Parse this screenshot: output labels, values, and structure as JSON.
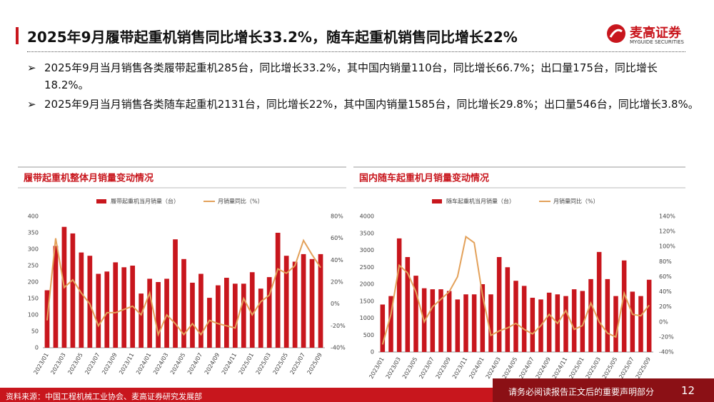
{
  "header": {
    "title": "2025年9月履带起重机销售同比增长33.2%，随车起重机销售同比增长22%",
    "logo": "麦高证券",
    "logo_sub": "MYGUIDE SECURITIES"
  },
  "bullets": [
    "2025年9月当月销售各类履带起重机285台，同比增长33.2%，其中国内销量110台，同比增长66.7%；出口量175台，同比增长18.2%。",
    "2025年9月当月销售各类随车起重机2131台，同比增长22%，其中国内销量1585台，同比增长29.8%；出口量546台，同比增长3.8%。"
  ],
  "footer": {
    "source": "资料来源：中国工程机械工业协会、麦高证券研究发展部",
    "notice": "请务必阅读报告正文后的重要声明部分",
    "page": "12"
  },
  "chart_data": [
    {
      "type": "bar",
      "title": "履带起重机整体月销量变动情况",
      "categories": [
        "2023/01",
        null,
        "2023/03",
        null,
        "2023/05",
        null,
        "2023/07",
        null,
        "2023/09",
        null,
        "2023/11",
        null,
        "2024/01",
        null,
        "2024/03",
        null,
        "2024/05",
        null,
        "2024/07",
        null,
        "2024/09",
        null,
        "2024/11",
        null,
        "2025/01",
        null,
        "2025/03",
        null,
        "2025/05",
        null,
        "2025/07",
        null,
        "2025/09"
      ],
      "series": [
        {
          "name": "履带起重机当月销量（台）",
          "type": "bar",
          "color": "#c8161d",
          "values": [
            175,
            310,
            368,
            348,
            290,
            280,
            225,
            232,
            260,
            245,
            250,
            165,
            210,
            200,
            210,
            330,
            270,
            198,
            225,
            152,
            190,
            213,
            195,
            195,
            230,
            180,
            215,
            350,
            280,
            262,
            285,
            270,
            285
          ]
        },
        {
          "name": "月销量同比（%）",
          "type": "line",
          "axis": "y2",
          "color": "#e3a15a",
          "values": [
            -15,
            60,
            15,
            22,
            10,
            0,
            -20,
            -8,
            -8,
            -5,
            -2,
            -10,
            10,
            -28,
            -10,
            -18,
            -28,
            -18,
            -28,
            -15,
            -18,
            -20,
            -22,
            5,
            -10,
            2,
            8,
            32,
            28,
            35,
            58,
            45,
            33.2
          ]
        }
      ],
      "ylim": [
        0,
        400
      ],
      "yticks": [
        0,
        50,
        100,
        150,
        200,
        250,
        300,
        350,
        400
      ],
      "y2lim": [
        -40,
        80
      ],
      "y2ticks": [
        {
          "value": -40,
          "label": "-40%"
        },
        {
          "value": -20,
          "label": "-20%"
        },
        {
          "value": 0,
          "label": "0%"
        },
        {
          "value": 20,
          "label": "20%"
        },
        {
          "value": 40,
          "label": "40%"
        },
        {
          "value": 60,
          "label": "60%"
        },
        {
          "value": 80,
          "label": "80%"
        }
      ]
    },
    {
      "type": "bar",
      "title": "国内随车起重机月销量变动情况",
      "categories": [
        "2023/01",
        null,
        "2023/03",
        null,
        "2023/05",
        null,
        "2023/07",
        null,
        "2023/09",
        null,
        "2023/11",
        null,
        "2024/01",
        null,
        "2024/03",
        null,
        "2024/05",
        null,
        "2024/07",
        null,
        "2024/09",
        null,
        "2024/11",
        null,
        "2025/01",
        null,
        "2025/03",
        null,
        "2025/05",
        null,
        "2025/07",
        null,
        "2025/09"
      ],
      "series": [
        {
          "name": "随车起重机当月销量（台）",
          "type": "bar",
          "color": "#c8161d",
          "values": [
            1400,
            1650,
            3350,
            2800,
            2250,
            1880,
            1850,
            1850,
            1800,
            1550,
            1700,
            1700,
            2000,
            1700,
            2800,
            2500,
            2100,
            1950,
            1600,
            1550,
            1750,
            1700,
            1650,
            1850,
            1800,
            2150,
            2950,
            2150,
            1650,
            2700,
            1780,
            1650,
            2131
          ]
        },
        {
          "name": "月销量同比（%）",
          "type": "line",
          "axis": "y2",
          "color": "#e3a15a",
          "values": [
            -30,
            10,
            75,
            65,
            40,
            0,
            20,
            30,
            40,
            60,
            113,
            105,
            35,
            -18,
            -12,
            -8,
            -2,
            -10,
            -16,
            -5,
            10,
            -2,
            15,
            -10,
            -5,
            25,
            0,
            -15,
            -20,
            38,
            10,
            8,
            22
          ]
        }
      ],
      "ylim": [
        0,
        4000
      ],
      "yticks": [
        0,
        500,
        1000,
        1500,
        2000,
        2500,
        3000,
        3500,
        4000
      ],
      "y2lim": [
        -40,
        140
      ],
      "y2ticks": [
        {
          "value": -40,
          "label": "-40%"
        },
        {
          "value": -20,
          "label": "-20%"
        },
        {
          "value": 0,
          "label": "0%"
        },
        {
          "value": 20,
          "label": "20%"
        },
        {
          "value": 40,
          "label": "40%"
        },
        {
          "value": 60,
          "label": "60%"
        },
        {
          "value": 80,
          "label": "80%"
        },
        {
          "value": 100,
          "label": "100%"
        },
        {
          "value": 120,
          "label": "120%"
        },
        {
          "value": 140,
          "label": "140%"
        }
      ]
    }
  ]
}
